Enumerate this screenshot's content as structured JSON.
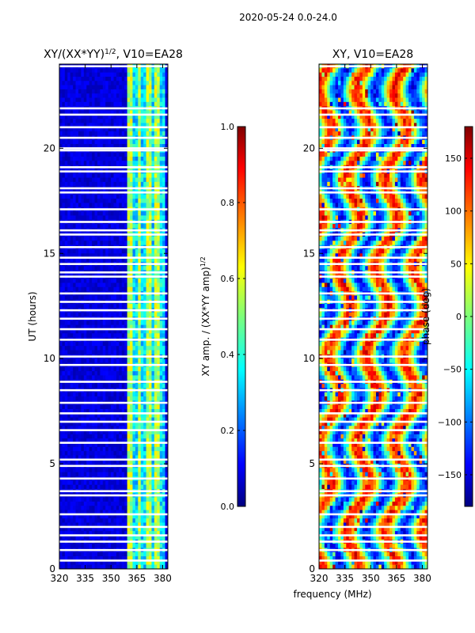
{
  "suptitle": "2020-05-24 0.0-24.0",
  "chart_data": [
    {
      "type": "heatmap",
      "title_main": "XY/(XX*YY)",
      "title_sup": "1/2",
      "title_rest": ", V10=EA28",
      "xlabel": "",
      "ylabel": "UT (hours)",
      "x_ticks": [
        320,
        335,
        350,
        365,
        380
      ],
      "y_ticks": [
        0,
        5,
        10,
        15,
        20
      ],
      "xlim": [
        320,
        383
      ],
      "ylim": [
        0,
        24
      ],
      "colormap": "jet",
      "colorbar": {
        "label_main": "XY amp. / (XX*YY amp)",
        "label_sup": "1/2",
        "ticks": [
          "0.0",
          "0.2",
          "0.4",
          "0.6",
          "0.8",
          "1.0"
        ],
        "range": [
          0,
          1
        ]
      },
      "description": "Mostly low amplitude (dark blue) below 360 MHz, higher amplitude (cyan-yellow) vertical bands between ~360 and ~380 MHz; white horizontal gaps are flagged times"
    },
    {
      "type": "heatmap",
      "title": "XY, V10=EA28",
      "xlabel": "frequency (MHz)",
      "ylabel": "",
      "x_ticks": [
        320,
        335,
        350,
        365,
        380
      ],
      "y_ticks": [
        0,
        5,
        10,
        15,
        20
      ],
      "xlim": [
        320,
        383
      ],
      "ylim": [
        0,
        24
      ],
      "colormap": "jet",
      "colorbar": {
        "label": "phase (deg)",
        "ticks": [
          "150",
          "100",
          "50",
          "0",
          "−50",
          "−100",
          "−150"
        ],
        "range": [
          -180,
          180
        ]
      },
      "description": "Phase varies widely across the full band; mixed red/orange/yellow/cyan/blue patches with white horizontal gaps at flagged times"
    }
  ],
  "flag_gaps_hours": [
    23.9,
    21.9,
    21.6,
    21.0,
    20.5,
    20.0,
    19.9,
    19.1,
    18.9,
    18.1,
    17.9,
    17.1,
    16.5,
    16.1,
    15.9,
    15.3,
    14.8,
    14.5,
    14.1,
    13.9,
    13.1,
    12.7,
    12.3,
    11.9,
    11.4,
    10.9,
    10.1,
    9.7,
    8.9,
    8.5,
    7.9,
    7.4,
    7.0,
    6.6,
    6.0,
    5.2,
    4.9,
    4.3,
    3.7,
    3.5,
    2.6,
    2.0,
    1.6,
    1.3,
    0.9,
    0.4
  ]
}
